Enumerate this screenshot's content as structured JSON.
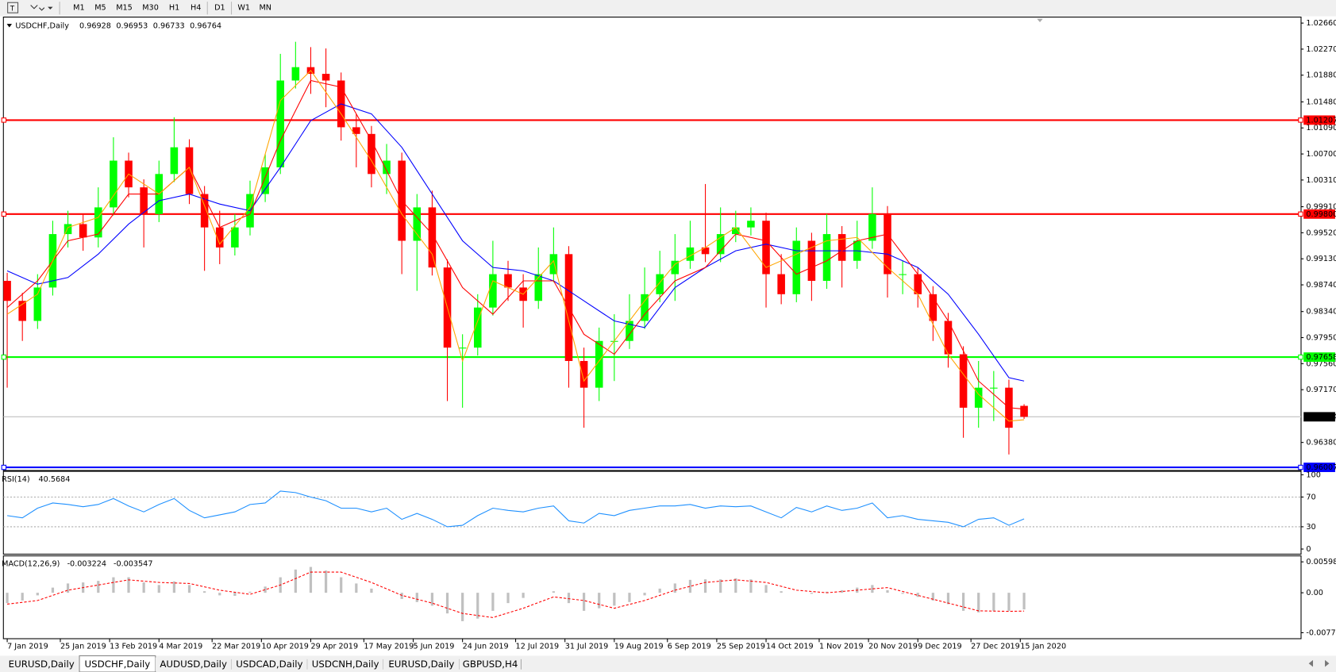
{
  "toolbar": {
    "timeframes": [
      "M1",
      "M5",
      "M15",
      "M30",
      "H1",
      "H4",
      "D1",
      "W1",
      "MN"
    ]
  },
  "tabs": {
    "items": [
      "EURUSD,Daily",
      "USDCHF,Daily",
      "AUDUSD,Daily",
      "USDCAD,Daily",
      "USDCNH,Daily",
      "EURUSD,Daily",
      "GBPUSD,H4"
    ],
    "active": 1
  },
  "chart_data": [
    {
      "type": "candlestick",
      "title": "USDCHF,Daily",
      "x": [
        0,
        4,
        8,
        12,
        16,
        20,
        24,
        28,
        32,
        36,
        40,
        44,
        48,
        52,
        56,
        60,
        64,
        68,
        72,
        76,
        80,
        84,
        88,
        92,
        96,
        100,
        104,
        108,
        112,
        116,
        120,
        124,
        128,
        132,
        136,
        140,
        144,
        148,
        152,
        156,
        160,
        164,
        168,
        172,
        176,
        180,
        184,
        188,
        192,
        196,
        200,
        204,
        208,
        212,
        216,
        220,
        224,
        228,
        232,
        236,
        240,
        244,
        248,
        252,
        256,
        260,
        264,
        268
      ],
      "open": [
        0.988,
        0.985,
        0.982,
        0.987,
        0.995,
        0.9965,
        0.9945,
        0.999,
        1.006,
        1.002,
        0.998,
        1.004,
        1.008,
        1.001,
        0.996,
        0.993,
        0.996,
        1.001,
        1.005,
        1.018,
        1.02,
        1.019,
        1.018,
        1.011,
        1.01,
        1.004,
        1.006,
        0.994,
        0.999,
        0.99,
        0.978,
        0.978,
        0.984,
        0.989,
        0.987,
        0.985,
        0.989,
        0.992,
        0.976,
        0.972,
        0.979,
        0.979,
        0.982,
        0.986,
        0.989,
        0.991,
        0.993,
        0.992,
        0.995,
        0.996,
        0.997,
        0.989,
        0.986,
        0.994,
        0.988,
        0.995,
        0.991,
        0.994,
        0.998,
        0.989,
        0.989,
        0.986,
        0.982,
        0.977,
        0.969,
        0.972,
        0.972,
        0.96928
      ],
      "high": [
        0.9892,
        0.9862,
        0.989,
        0.997,
        0.9985,
        0.998,
        1.002,
        1.0095,
        1.0072,
        1.0032,
        1.006,
        1.0125,
        1.0092,
        1.0022,
        0.9985,
        0.998,
        1.003,
        1.007,
        1.022,
        1.0238,
        1.023,
        1.0228,
        1.0192,
        1.013,
        1.0112,
        1.0085,
        1.0072,
        1.001,
        1.0015,
        0.9912,
        0.98,
        0.986,
        0.994,
        0.991,
        0.989,
        0.993,
        0.996,
        0.9932,
        0.978,
        0.981,
        0.983,
        0.986,
        0.99,
        0.9925,
        0.995,
        0.997,
        1.0025,
        0.999,
        0.9985,
        0.999,
        0.9982,
        0.992,
        0.996,
        0.9952,
        0.998,
        0.9962,
        0.997,
        1.002,
        0.9992,
        0.991,
        0.99,
        0.9872,
        0.9832,
        0.9782,
        0.976,
        0.9745,
        0.9732,
        0.96953
      ],
      "low": [
        0.972,
        0.979,
        0.9808,
        0.9858,
        0.993,
        0.9925,
        0.993,
        0.9978,
        1.0005,
        0.993,
        0.9968,
        1.0028,
        0.9995,
        0.9895,
        0.9905,
        0.9918,
        0.9948,
        0.9998,
        1.004,
        1.0168,
        1.016,
        1.014,
        1.009,
        1.005,
        1.002,
        1.001,
        0.989,
        0.9865,
        0.9888,
        0.97,
        0.969,
        0.9768,
        0.9828,
        0.985,
        0.981,
        0.9838,
        0.9878,
        0.972,
        0.966,
        0.97,
        0.973,
        0.9778,
        0.9808,
        0.9848,
        0.985,
        0.9898,
        0.9908,
        0.9908,
        0.9938,
        0.9948,
        0.984,
        0.9845,
        0.9848,
        0.985,
        0.9868,
        0.987,
        0.9898,
        0.9928,
        0.9855,
        0.986,
        0.984,
        0.979,
        0.975,
        0.9645,
        0.966,
        0.967,
        0.962,
        0.96733
      ],
      "close": [
        0.985,
        0.982,
        0.987,
        0.995,
        0.9965,
        0.9945,
        0.999,
        1.006,
        1.002,
        0.998,
        1.004,
        1.008,
        1.001,
        0.996,
        0.993,
        0.996,
        1.001,
        1.005,
        1.018,
        1.02,
        1.019,
        1.018,
        1.011,
        1.01,
        1.004,
        1.006,
        0.994,
        0.999,
        0.99,
        0.978,
        0.978,
        0.984,
        0.989,
        0.987,
        0.985,
        0.989,
        0.992,
        0.976,
        0.972,
        0.979,
        0.979,
        0.982,
        0.986,
        0.989,
        0.991,
        0.993,
        0.992,
        0.995,
        0.996,
        0.997,
        0.989,
        0.986,
        0.994,
        0.988,
        0.995,
        0.991,
        0.994,
        0.998,
        0.989,
        0.989,
        0.986,
        0.982,
        0.977,
        0.969,
        0.972,
        0.972,
        0.966,
        0.96764
      ],
      "colors": {
        "up": "#00ff00",
        "down": "#ff0000"
      },
      "current_price_color": "#c0c0c0",
      "xlim": [
        -1,
        341
      ],
      "xticks": [
        {
          "value": 0,
          "label": "7 Jan 2019"
        },
        {
          "value": 14,
          "label": "25 Jan 2019"
        },
        {
          "value": 27,
          "label": "13 Feb 2019"
        },
        {
          "value": 40,
          "label": "4 Mar 2019"
        },
        {
          "value": 54,
          "label": "22 Mar 2019"
        },
        {
          "value": 67,
          "label": "10 Apr 2019"
        },
        {
          "value": 80,
          "label": "29 Apr 2019"
        },
        {
          "value": 94,
          "label": "17 May 2019"
        },
        {
          "value": 107,
          "label": "5 Jun 2019"
        },
        {
          "value": 120,
          "label": "24 Jun 2019"
        },
        {
          "value": 134,
          "label": "12 Jul 2019"
        },
        {
          "value": 147,
          "label": "31 Jul 2019"
        },
        {
          "value": 160,
          "label": "19 Aug 2019"
        },
        {
          "value": 174,
          "label": "6 Sep 2019"
        },
        {
          "value": 187,
          "label": "25 Sep 2019"
        },
        {
          "value": 200,
          "label": "14 Oct 2019"
        },
        {
          "value": 214,
          "label": "1 Nov 2019"
        },
        {
          "value": 227,
          "label": "20 Nov 2019"
        },
        {
          "value": 240,
          "label": "9 Dec 2019"
        },
        {
          "value": 254,
          "label": "27 Dec 2019"
        },
        {
          "value": 267,
          "label": "15 Jan 2020"
        }
      ],
      "ylim": [
        0.9596,
        1.0275
      ],
      "yticks": [
        {
          "value": 1.0266,
          "label": "1.02660"
        },
        {
          "value": 1.0227,
          "label": "1.02270"
        },
        {
          "value": 1.0188,
          "label": "1.01880"
        },
        {
          "value": 1.0148,
          "label": "1.01480"
        },
        {
          "value": 1.0109,
          "label": "1.01090"
        },
        {
          "value": 1.007,
          "label": "1.00700"
        },
        {
          "value": 1.0031,
          "label": "1.00310"
        },
        {
          "value": 0.9991,
          "label": "0.99910"
        },
        {
          "value": 0.9952,
          "label": "0.99520"
        },
        {
          "value": 0.9913,
          "label": "0.99130"
        },
        {
          "value": 0.9874,
          "label": "0.98740"
        },
        {
          "value": 0.9834,
          "label": "0.98340"
        },
        {
          "value": 0.9795,
          "label": "0.97950"
        },
        {
          "value": 0.9756,
          "label": "0.97560"
        },
        {
          "value": 0.9717,
          "label": "0.97170"
        },
        {
          "value": 0.9638,
          "label": "0.96380"
        }
      ],
      "levels": [
        {
          "value": 1.01207,
          "label": "1.01207",
          "color": "#ff0000"
        },
        {
          "value": 0.998,
          "label": "0.99800",
          "color": "#ff0000"
        },
        {
          "value": 0.97658,
          "label": "0.97658",
          "color": "#00ff00"
        },
        {
          "value": 0.96007,
          "label": "0.96007",
          "color": "#0000ff"
        }
      ],
      "overlays": {
        "x": [
          0,
          8,
          16,
          24,
          32,
          40,
          48,
          56,
          64,
          72,
          80,
          88,
          96,
          104,
          112,
          120,
          128,
          136,
          144,
          152,
          160,
          168,
          176,
          184,
          192,
          200,
          208,
          216,
          224,
          232,
          240,
          248,
          256,
          264,
          268
        ],
        "series": [
          {
            "color": "#0000ff",
            "values": [
              0.9895,
              0.9875,
              0.9885,
              0.992,
              0.9965,
              1.0,
              1.001,
              0.9995,
              0.9985,
              1.005,
              1.012,
              1.0145,
              1.013,
              1.008,
              1.001,
              0.994,
              0.99,
              0.9895,
              0.988,
              0.985,
              0.982,
              0.981,
              0.987,
              0.99,
              0.9925,
              0.9935,
              0.9925,
              0.9925,
              0.9925,
              0.992,
              0.99,
              0.986,
              0.98,
              0.9735,
              0.973
            ]
          },
          {
            "color": "#ff0000",
            "values": [
              0.984,
              0.988,
              0.994,
              0.995,
              1.001,
              1.001,
              1.005,
              0.996,
              0.998,
              1.009,
              1.018,
              1.017,
              1.009,
              1.0,
              0.995,
              0.987,
              0.983,
              0.988,
              0.988,
              0.98,
              0.977,
              0.983,
              0.988,
              0.99,
              0.995,
              0.994,
              0.989,
              0.991,
              0.994,
              0.995,
              0.989,
              0.982,
              0.973,
              0.969,
              0.9688
            ]
          },
          {
            "color": "#ffa500",
            "values": [
              0.983,
              0.986,
              0.996,
              0.9975,
              1.004,
              1.001,
              1.005,
              0.9935,
              0.999,
              1.015,
              1.0195,
              1.013,
              1.006,
              0.998,
              0.992,
              0.976,
              0.988,
              0.986,
              0.991,
              0.973,
              0.979,
              0.985,
              0.9905,
              0.993,
              0.996,
              0.99,
              0.992,
              0.994,
              0.9945,
              0.99,
              0.986,
              0.977,
              0.971,
              0.967,
              0.9672
            ]
          }
        ]
      }
    },
    {
      "type": "line",
      "title": "RSI(14)",
      "color": "#1e90ff",
      "values": [
        45,
        42,
        55,
        62,
        60,
        57,
        60,
        68,
        58,
        50,
        60,
        68,
        52,
        42,
        46,
        50,
        60,
        62,
        78,
        76,
        70,
        65,
        55,
        55,
        50,
        55,
        40,
        48,
        40,
        30,
        32,
        45,
        55,
        52,
        50,
        55,
        58,
        38,
        35,
        48,
        45,
        52,
        55,
        58,
        58,
        60,
        55,
        58,
        57,
        58,
        50,
        42,
        56,
        50,
        58,
        52,
        55,
        62,
        42,
        45,
        40,
        38,
        36,
        30,
        40,
        42,
        32,
        40.5684
      ],
      "ylim": [
        0,
        100
      ],
      "yticks": [
        100,
        70,
        30,
        0
      ]
    },
    {
      "type": "macd",
      "title": "MACD(12,26,9)",
      "histogram_color": "#c0c0c0",
      "histogram": [
        -0.002,
        -0.0015,
        -0.0005,
        0.001,
        0.0018,
        0.002,
        0.0023,
        0.003,
        0.003,
        0.002,
        0.0015,
        0.0022,
        0.0015,
        0.0003,
        -0.0005,
        -0.0006,
        0.0002,
        0.0012,
        0.003,
        0.0045,
        0.005,
        0.0043,
        0.003,
        0.0018,
        0.0008,
        0,
        -0.0012,
        -0.0018,
        -0.0025,
        -0.004,
        -0.0055,
        -0.005,
        -0.0035,
        -0.002,
        -0.001,
        0,
        0.0003,
        -0.002,
        -0.0035,
        -0.003,
        -0.0025,
        -0.0018,
        -0.0005,
        0.0008,
        0.0018,
        0.0025,
        0.0026,
        0.0026,
        0.0028,
        0.0026,
        0.0015,
        0.0003,
        0,
        -0.0002,
        0.0002,
        0.0005,
        0.001,
        0.0015,
        0.0005,
        -0.0002,
        -0.0008,
        -0.0015,
        -0.0022,
        -0.0035,
        -0.0038,
        -0.0035,
        -0.0035,
        -0.003224
      ],
      "signal": {
        "color": "#ff0000",
        "values": [
          -0.0022,
          -0.0015,
          0.0005,
          0.0015,
          0.0025,
          0.002,
          0.0018,
          0.0005,
          -0.0003,
          0.0015,
          0.004,
          0.004,
          0.002,
          -0.0005,
          -0.002,
          -0.004,
          -0.0048,
          -0.003,
          -0.0008,
          -0.0015,
          -0.003,
          -0.0015,
          0.0005,
          0.002,
          0.0025,
          0.002,
          0.0005,
          0,
          0.0005,
          0.001,
          -0.0005,
          -0.002,
          -0.0035,
          -0.0036,
          -0.003547
        ]
      },
      "ylim": [
        -0.007737,
        0.005986
      ],
      "yticks": [
        0.005986,
        {
          "value": 0,
          "label": "0.00"
        },
        -0.007737
      ]
    }
  ]
}
